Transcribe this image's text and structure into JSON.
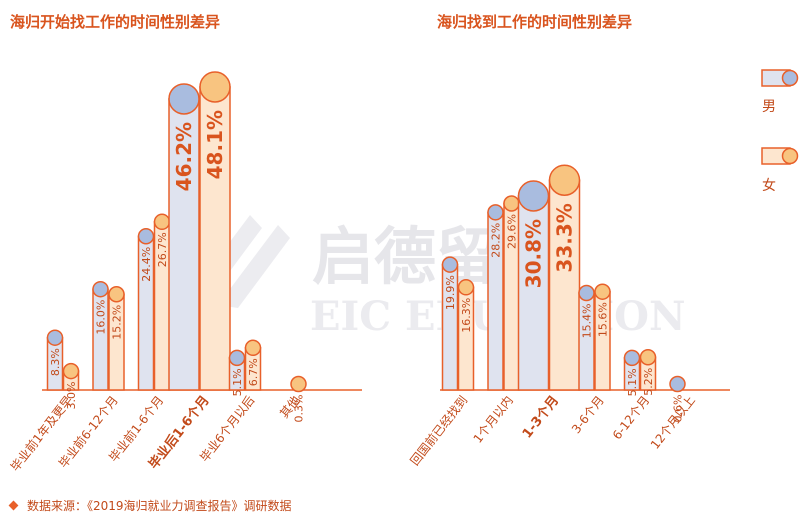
{
  "colors": {
    "male_fill": "#dfe3ef",
    "male_cap": "#a9bcdf",
    "female_fill": "#fde6cf",
    "female_cap": "#f8c480",
    "stroke": "#e8602a",
    "text": "#c24a1a"
  },
  "watermark": {
    "cn": "启德留学",
    "en": "EIC EDUCATION"
  },
  "legend": {
    "male": "男",
    "female": "女",
    "position": "right"
  },
  "source": "数据来源：《2019海归就业力调查报告》调研数据",
  "chart_data": [
    {
      "type": "bar",
      "title": "海归开始找工作的时间性别差异",
      "categories": [
        "毕业前1年及更早",
        "毕业前6-12个月",
        "毕业前1-6个月",
        "毕业后1-6个月",
        "毕业6个月以后",
        "其他"
      ],
      "highlight_index": 3,
      "series": [
        {
          "name": "男",
          "values": [
            8.3,
            16.0,
            24.4,
            46.2,
            5.1,
            0.0
          ],
          "labels": [
            "8.3%",
            "16.0%",
            "24.4%",
            "46.2%",
            "5.1%",
            ""
          ]
        },
        {
          "name": "女",
          "values": [
            3.0,
            15.2,
            26.7,
            48.1,
            6.7,
            0.3
          ],
          "labels": [
            "3.0%",
            "15.2%",
            "26.7%",
            "48.1%",
            "6.7%",
            "0.3%"
          ]
        }
      ]
    },
    {
      "type": "bar",
      "title": "海归找到工作的时间性别差异",
      "categories": [
        "回国前已经找到",
        "1个月以内",
        "1-3个月",
        "3-6个月",
        "6-12个月",
        "12个月以上"
      ],
      "highlight_index": 2,
      "series": [
        {
          "name": "男",
          "values": [
            19.9,
            28.2,
            30.8,
            15.4,
            5.1,
            0.6
          ],
          "labels": [
            "19.9%",
            "28.2%",
            "30.8%",
            "15.4%",
            "5.1%",
            "0.6%"
          ]
        },
        {
          "name": "女",
          "values": [
            16.3,
            29.6,
            33.3,
            15.6,
            5.2,
            0.0
          ],
          "labels": [
            "16.3%",
            "29.6%",
            "33.3%",
            "15.6%",
            "5.2%",
            ""
          ]
        }
      ]
    }
  ]
}
